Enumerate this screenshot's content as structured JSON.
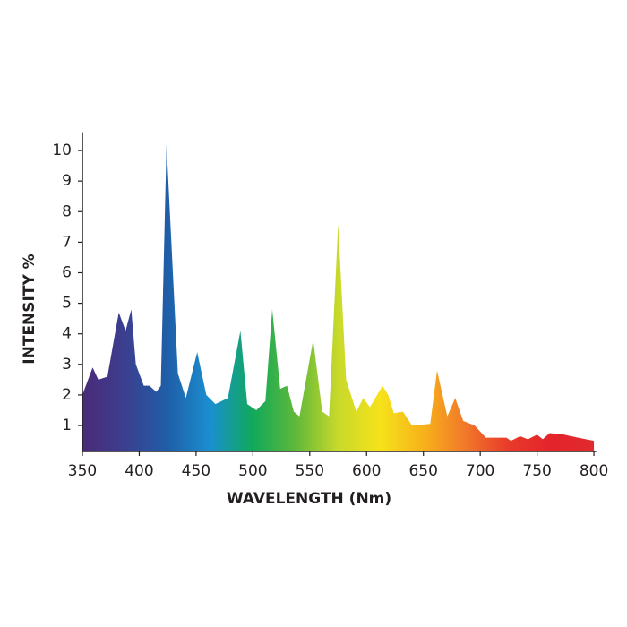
{
  "chart_data": {
    "type": "area",
    "xlabel": "WAVELENGTH (Nm)",
    "ylabel": "INTENSITY %",
    "x": [
      350,
      359,
      364,
      372,
      382,
      388,
      393,
      397,
      404,
      409,
      415,
      419,
      424,
      434,
      441,
      451,
      459,
      467,
      478,
      489,
      495,
      503,
      511,
      517,
      524,
      530,
      536,
      541,
      553,
      561,
      567,
      575,
      582,
      591,
      597,
      603,
      614,
      619,
      624,
      632,
      640,
      656,
      662,
      671,
      678,
      685,
      695,
      705,
      723,
      727,
      735,
      742,
      750,
      755,
      761,
      774,
      786,
      800
    ],
    "values": [
      2.0,
      2.9,
      2.5,
      2.6,
      4.7,
      4.1,
      4.8,
      3.0,
      2.3,
      2.3,
      2.1,
      2.3,
      10.2,
      2.7,
      1.9,
      3.4,
      2.0,
      1.7,
      1.9,
      4.1,
      1.7,
      1.5,
      1.8,
      4.8,
      2.2,
      2.3,
      1.45,
      1.3,
      3.8,
      1.45,
      1.3,
      7.6,
      2.5,
      1.45,
      1.9,
      1.6,
      2.3,
      2.0,
      1.4,
      1.45,
      1.0,
      1.05,
      2.8,
      1.3,
      1.9,
      1.15,
      1.0,
      0.6,
      0.6,
      0.5,
      0.65,
      0.55,
      0.7,
      0.55,
      0.75,
      0.7,
      0.6,
      0.5
    ],
    "gradient": [
      "#4a2a78",
      "#3b3f8f",
      "#1f5ea8",
      "#1a8fd0",
      "#10a95a",
      "#5fb83a",
      "#c9d92a",
      "#f6e21a",
      "#f7b21a",
      "#f1772a",
      "#e83a2a",
      "#e3242b",
      "#e02a2e"
    ],
    "xlim": [
      350,
      802
    ],
    "ylim": [
      0.15,
      10.6
    ],
    "xticks": [
      350,
      400,
      450,
      500,
      550,
      600,
      650,
      700,
      750,
      800
    ],
    "yticks": [
      1,
      2,
      3,
      4,
      5,
      6,
      7,
      8,
      9,
      10
    ]
  }
}
